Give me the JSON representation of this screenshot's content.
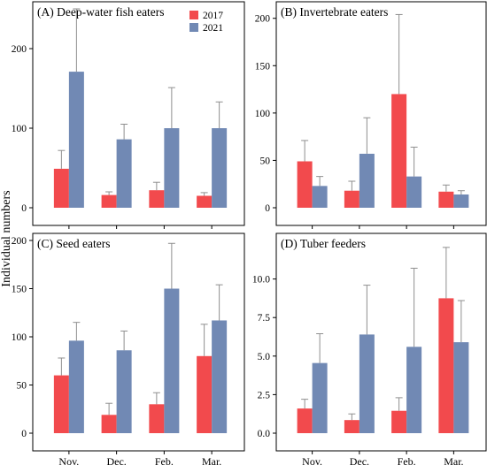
{
  "figure": {
    "ylabel": "Individual numbers",
    "colors": {
      "2017": "#f24a4d",
      "2021": "#7189b4",
      "error_bar": "#8f8f8f",
      "axis": "#000000"
    }
  },
  "chart_data": [
    {
      "type": "bar",
      "title": "(A) Deep-water fish eaters",
      "categories": [
        "Nov.",
        "Dec.",
        "Feb.",
        "Mar."
      ],
      "legend": {
        "position": "top-right",
        "entries": [
          "2017",
          "2021"
        ]
      },
      "ylim": [
        0,
        250
      ],
      "yticks": [
        0,
        100,
        200
      ],
      "ytick_labels": [
        "0",
        "100",
        "200"
      ],
      "show_xtick_labels": false,
      "series": [
        {
          "name": "2017",
          "values": [
            49,
            16,
            22,
            15
          ],
          "errors": [
            23,
            4,
            10,
            4
          ]
        },
        {
          "name": "2021",
          "values": [
            171,
            86,
            100,
            100
          ],
          "errors": [
            79,
            19,
            51,
            33
          ]
        }
      ]
    },
    {
      "type": "bar",
      "title": "(B) Invertebrate eaters",
      "categories": [
        "Nov.",
        "Dec.",
        "Feb.",
        "Mar."
      ],
      "ylim": [
        0,
        210
      ],
      "yticks": [
        0,
        50,
        100,
        150,
        200
      ],
      "ytick_labels": [
        "0",
        "50",
        "100",
        "150",
        "200"
      ],
      "show_xtick_labels": false,
      "series": [
        {
          "name": "2017",
          "values": [
            49,
            18,
            120,
            17
          ],
          "errors": [
            22,
            10,
            84,
            7
          ]
        },
        {
          "name": "2021",
          "values": [
            23,
            57,
            33,
            14
          ],
          "errors": [
            10,
            38,
            31,
            4
          ]
        }
      ]
    },
    {
      "type": "bar",
      "title": "(C) Seed eaters",
      "categories": [
        "Nov.",
        "Dec.",
        "Feb.",
        "Mar."
      ],
      "ylim": [
        0,
        200
      ],
      "yticks": [
        0,
        50,
        100,
        150,
        200
      ],
      "ytick_labels": [
        "0",
        "50",
        "100",
        "150",
        "200"
      ],
      "show_xtick_labels": true,
      "series": [
        {
          "name": "2017",
          "values": [
            60,
            19,
            30,
            80
          ],
          "errors": [
            18,
            12,
            12,
            33
          ]
        },
        {
          "name": "2021",
          "values": [
            96,
            86,
            150,
            117
          ],
          "errors": [
            19,
            20,
            47,
            37
          ]
        }
      ]
    },
    {
      "type": "bar",
      "title": "(D) Tuber feeders",
      "categories": [
        "Nov.",
        "Dec.",
        "Feb.",
        "Mar."
      ],
      "ylim": [
        0,
        12.5
      ],
      "yticks": [
        0,
        2.5,
        5,
        7.5,
        10
      ],
      "ytick_labels": [
        "0.0",
        "2.5",
        "5.0",
        "7.5",
        "10.0"
      ],
      "show_xtick_labels": true,
      "series": [
        {
          "name": "2017",
          "values": [
            1.6,
            0.85,
            1.45,
            8.75
          ],
          "errors": [
            0.6,
            0.4,
            0.85,
            3.3
          ]
        },
        {
          "name": "2021",
          "values": [
            4.55,
            6.4,
            5.6,
            5.9
          ],
          "errors": [
            1.9,
            3.2,
            5.1,
            2.7
          ]
        }
      ]
    }
  ]
}
